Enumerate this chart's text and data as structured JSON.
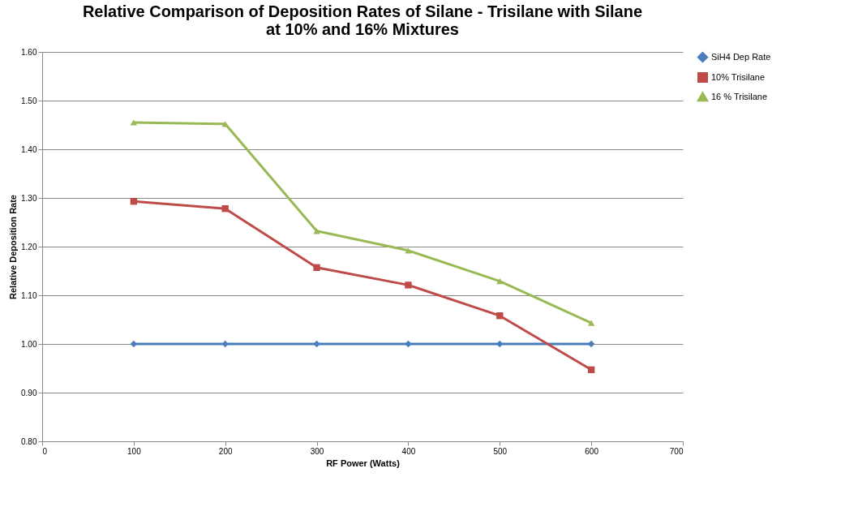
{
  "chart_data": {
    "type": "line",
    "title": "Relative Comparison of Deposition Rates of Silane - Trisilane  with Silane\nat 10% and 16% Mixtures",
    "xlabel": "RF Power (Watts)",
    "ylabel": "Relative Deposition Rate",
    "x": [
      100,
      200,
      300,
      400,
      500,
      600
    ],
    "series": [
      {
        "name": "SiH4 Dep Rate",
        "color": "#4a7ebb",
        "marker": "diamond",
        "values": [
          1.0,
          1.0,
          1.0,
          1.0,
          1.0,
          1.0
        ]
      },
      {
        "name": "10% Trisilane",
        "color": "#be4b48",
        "marker": "square",
        "values": [
          1.293,
          1.278,
          1.157,
          1.121,
          1.058,
          0.947
        ]
      },
      {
        "name": "16 % Trisilane",
        "color": "#98b954",
        "marker": "triangle",
        "values": [
          1.455,
          1.452,
          1.232,
          1.192,
          1.129,
          1.043
        ]
      }
    ],
    "xlim": [
      0,
      700
    ],
    "xticks": [
      0,
      100,
      200,
      300,
      400,
      500,
      600,
      700
    ],
    "ylim": [
      0.8,
      1.6
    ],
    "yticks": [
      {
        "value": 0.8,
        "label": "0.80"
      },
      {
        "value": 0.9,
        "label": "0.90"
      },
      {
        "value": 1.0,
        "label": "1.00"
      },
      {
        "value": 1.1,
        "label": "1.10"
      },
      {
        "value": 1.2,
        "label": "1.20"
      },
      {
        "value": 1.3,
        "label": "1.30"
      },
      {
        "value": 1.4,
        "label": "1.40"
      },
      {
        "value": 1.5,
        "label": "1.50"
      },
      {
        "value": 1.6,
        "label": "1.60"
      }
    ],
    "grid": "y",
    "legend": "right",
    "line_style": "solid"
  }
}
